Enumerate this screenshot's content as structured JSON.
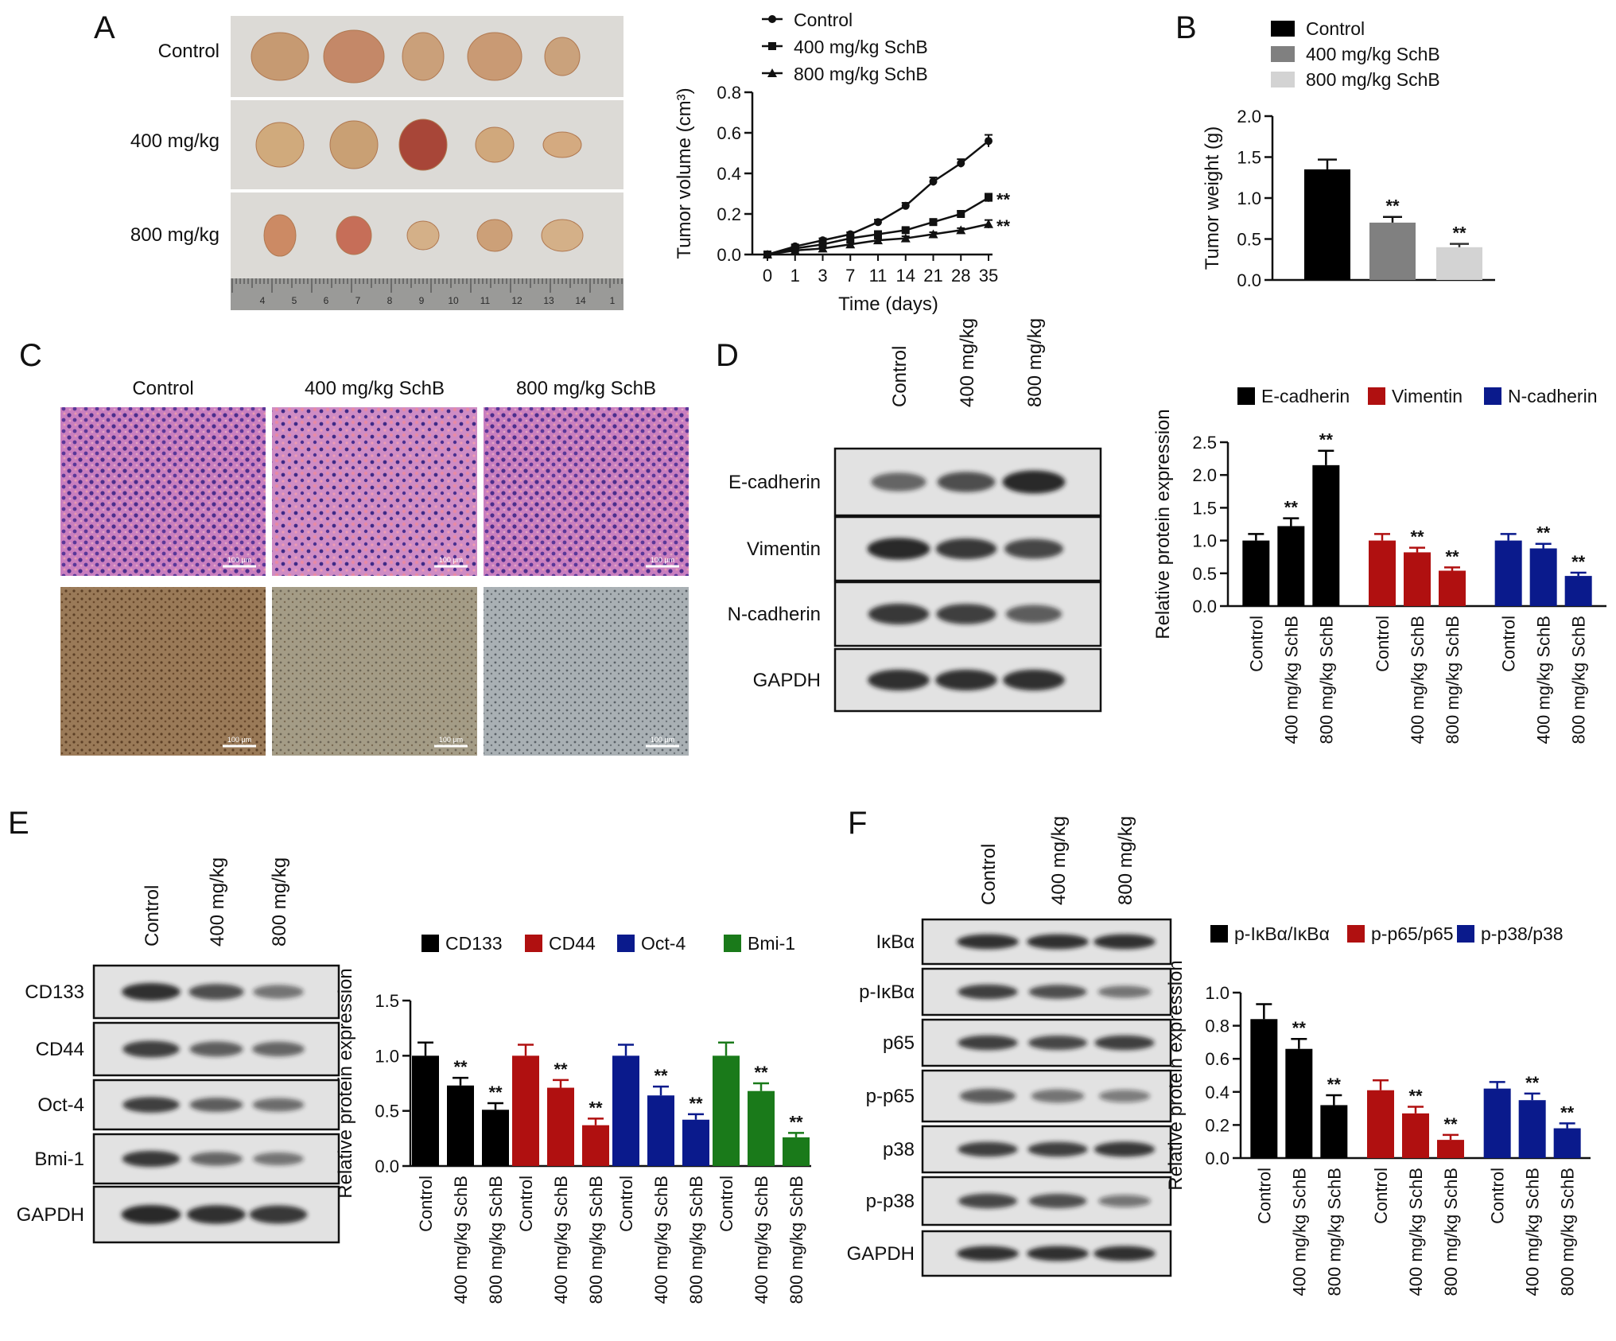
{
  "panel_letters": {
    "A": "A",
    "B": "B",
    "C": "C",
    "D": "D",
    "E": "E",
    "F": "F"
  },
  "panelA": {
    "photo_rows": [
      "Control",
      "400 mg/kg",
      "800 mg/kg"
    ],
    "ruler_numbers": [
      "4",
      "5",
      "6",
      "7",
      "8",
      "9",
      "10",
      "11",
      "12",
      "13",
      "14",
      "1"
    ]
  },
  "panelC": {
    "columns": [
      "Control",
      "400 mg/kg SchB",
      "800 mg/kg SchB"
    ],
    "scale_bar": "100 μm"
  },
  "blotD": {
    "lanes": [
      "Control",
      "400 mg/kg",
      "800 mg/kg"
    ],
    "rows": [
      "E-cadherin",
      "Vimentin",
      "N-cadherin",
      "GAPDH"
    ]
  },
  "blotE": {
    "lanes": [
      "Control",
      "400 mg/kg",
      "800 mg/kg"
    ],
    "rows": [
      "CD133",
      "CD44",
      "Oct-4",
      "Bmi-1",
      "GAPDH"
    ]
  },
  "blotF": {
    "lanes": [
      "Control",
      "400 mg/kg",
      "800 mg/kg"
    ],
    "rows": [
      "IκBα",
      "p-IκBα",
      "p65",
      "p-p65",
      "p38",
      "p-p38",
      "GAPDH"
    ]
  },
  "chart_data": [
    {
      "id": "A",
      "type": "line",
      "xlabel": "Time (days)",
      "ylabel": "Tumor volume (cm³)",
      "x": [
        "0",
        "1",
        "3",
        "7",
        "11",
        "14",
        "21",
        "28",
        "35"
      ],
      "ylim": [
        0,
        0.8
      ],
      "yticks": [
        "0.0",
        "0.2",
        "0.4",
        "0.6",
        "0.8"
      ],
      "series": [
        {
          "name": "Control",
          "marker": "circle",
          "values": [
            0,
            0.04,
            0.07,
            0.1,
            0.16,
            0.24,
            0.36,
            0.45,
            0.56
          ],
          "err": [
            0.005,
            0.01,
            0.01,
            0.01,
            0.012,
            0.015,
            0.02,
            0.02,
            0.03
          ]
        },
        {
          "name": "400 mg/kg SchB",
          "marker": "square",
          "values": [
            0,
            0.03,
            0.05,
            0.08,
            0.1,
            0.12,
            0.16,
            0.2,
            0.28
          ],
          "err": [
            0.005,
            0.008,
            0.008,
            0.01,
            0.01,
            0.01,
            0.012,
            0.015,
            0.02
          ],
          "sig": "**"
        },
        {
          "name": "800 mg/kg SchB",
          "marker": "triangle",
          "values": [
            0,
            0.02,
            0.03,
            0.05,
            0.07,
            0.08,
            0.1,
            0.12,
            0.15
          ],
          "err": [
            0.005,
            0.006,
            0.006,
            0.008,
            0.008,
            0.01,
            0.01,
            0.01,
            0.02
          ],
          "sig": "**"
        }
      ]
    },
    {
      "id": "B",
      "type": "bar",
      "ylabel": "Tumor weight (g)",
      "categories": [
        "Control",
        "400 mg/kg SchB",
        "800 mg/kg SchB"
      ],
      "values": [
        1.35,
        0.7,
        0.4
      ],
      "err": [
        0.12,
        0.07,
        0.04
      ],
      "sig": [
        "",
        "**",
        "**"
      ],
      "colors": [
        "#000000",
        "#808080",
        "#d3d3d3"
      ],
      "ylim": [
        0,
        2.0
      ],
      "yticks": [
        "0.0",
        "0.5",
        "1.0",
        "1.5",
        "2.0"
      ]
    },
    {
      "id": "D",
      "type": "bar",
      "ylabel": "Relative protein expression",
      "categories": [
        "Control",
        "400 mg/kg SchB",
        "800 mg/kg SchB"
      ],
      "ylim": [
        0,
        2.5
      ],
      "yticks": [
        "0.0",
        "0.5",
        "1.0",
        "1.5",
        "2.0",
        "2.5"
      ],
      "series": [
        {
          "name": "E-cadherin",
          "color": "#000000",
          "values": [
            1.0,
            1.22,
            2.15
          ],
          "err": [
            0.1,
            0.12,
            0.22
          ],
          "sig": [
            "",
            "**",
            "**"
          ]
        },
        {
          "name": "Vimentin",
          "color": "#b01010",
          "values": [
            1.0,
            0.82,
            0.54
          ],
          "err": [
            0.1,
            0.07,
            0.05
          ],
          "sig": [
            "",
            "**",
            "**"
          ]
        },
        {
          "name": "N-cadherin",
          "color": "#0a1a8c",
          "values": [
            1.0,
            0.88,
            0.46
          ],
          "err": [
            0.1,
            0.07,
            0.05
          ],
          "sig": [
            "",
            "**",
            "**"
          ]
        }
      ]
    },
    {
      "id": "E",
      "type": "bar",
      "ylabel": "Relative protein expression",
      "categories": [
        "Control",
        "400 mg/kg SchB",
        "800 mg/kg SchB"
      ],
      "ylim": [
        0,
        1.5
      ],
      "yticks": [
        "0.0",
        "0.5",
        "1.0",
        "1.5"
      ],
      "series": [
        {
          "name": "CD133",
          "color": "#000000",
          "values": [
            1.0,
            0.73,
            0.51
          ],
          "err": [
            0.12,
            0.07,
            0.06
          ],
          "sig": [
            "",
            "**",
            "**"
          ]
        },
        {
          "name": "CD44",
          "color": "#b01010",
          "values": [
            1.0,
            0.71,
            0.37
          ],
          "err": [
            0.1,
            0.07,
            0.06
          ],
          "sig": [
            "",
            "**",
            "**"
          ]
        },
        {
          "name": "Oct-4",
          "color": "#0a1a8c",
          "values": [
            1.0,
            0.64,
            0.42
          ],
          "err": [
            0.1,
            0.08,
            0.05
          ],
          "sig": [
            "",
            "**",
            "**"
          ]
        },
        {
          "name": "Bmi-1",
          "color": "#1a7a1a",
          "values": [
            1.0,
            0.68,
            0.26
          ],
          "err": [
            0.12,
            0.07,
            0.04
          ],
          "sig": [
            "",
            "**",
            "**"
          ]
        }
      ]
    },
    {
      "id": "F",
      "type": "bar",
      "ylabel": "Relative protein expression",
      "categories": [
        "Control",
        "400 mg/kg SchB",
        "800 mg/kg SchB"
      ],
      "ylim": [
        0,
        1.0
      ],
      "yticks": [
        "0.0",
        "0.2",
        "0.4",
        "0.6",
        "0.8",
        "1.0"
      ],
      "series": [
        {
          "name": "p-IκBα/IκBα",
          "color": "#000000",
          "values": [
            0.84,
            0.66,
            0.32
          ],
          "err": [
            0.09,
            0.06,
            0.06
          ],
          "sig": [
            "",
            "**",
            "**"
          ]
        },
        {
          "name": "p-p65/p65",
          "color": "#b01010",
          "values": [
            0.41,
            0.27,
            0.11
          ],
          "err": [
            0.06,
            0.04,
            0.03
          ],
          "sig": [
            "",
            "**",
            "**"
          ]
        },
        {
          "name": "p-p38/p38",
          "color": "#0a1a8c",
          "values": [
            0.42,
            0.35,
            0.18
          ],
          "err": [
            0.04,
            0.04,
            0.03
          ],
          "sig": [
            "",
            "**",
            "**"
          ]
        }
      ]
    }
  ]
}
